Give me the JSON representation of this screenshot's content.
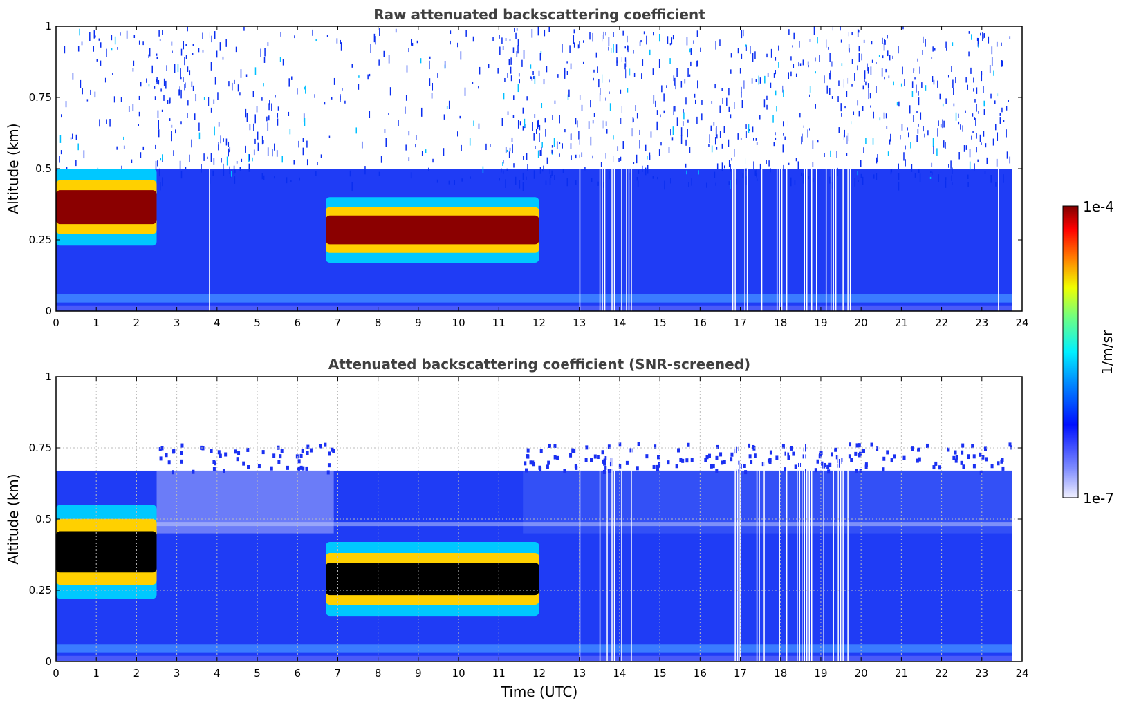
{
  "chart_data": [
    {
      "type": "heatmap",
      "title": "Raw attenuated backscattering coefficient",
      "xlabel": "",
      "ylabel": "Altitude (km)",
      "xlim": [
        0,
        24
      ],
      "ylim": [
        0,
        1
      ],
      "x_ticks": [
        "0",
        "1",
        "2",
        "3",
        "4",
        "5",
        "6",
        "7",
        "8",
        "9",
        "10",
        "11",
        "12",
        "13",
        "14",
        "15",
        "16",
        "17",
        "18",
        "19",
        "20",
        "21",
        "22",
        "23",
        "24"
      ],
      "y_ticks": [
        "0",
        "0.25",
        "0.5",
        "0.75",
        "1"
      ],
      "grid": false,
      "features": [
        {
          "name": "low layer",
          "time_utc": [
            0.0,
            2.5
          ],
          "base_km": 0.23,
          "top_km": 0.5,
          "peak_km": 0.35
        },
        {
          "name": "mid-day layer",
          "time_utc": [
            6.7,
            12.0
          ],
          "base_km": 0.17,
          "top_km": 0.4,
          "peak_km": 0.25
        }
      ]
    },
    {
      "type": "heatmap",
      "title": "Attenuated backscattering coefficient (SNR-screened)",
      "xlabel": "Time (UTC)",
      "ylabel": "Altitude (km)",
      "xlim": [
        0,
        24
      ],
      "ylim": [
        0,
        1
      ],
      "x_ticks": [
        "0",
        "1",
        "2",
        "3",
        "4",
        "5",
        "6",
        "7",
        "8",
        "9",
        "10",
        "11",
        "12",
        "13",
        "14",
        "15",
        "16",
        "17",
        "18",
        "19",
        "20",
        "21",
        "22",
        "23",
        "24"
      ],
      "y_ticks": [
        "0",
        "0.25",
        "0.5",
        "0.75",
        "1"
      ],
      "grid": true,
      "screened_top_km": [
        0.67,
        0.75
      ],
      "features": [
        {
          "name": "low layer",
          "time_utc": [
            0.0,
            2.5
          ],
          "base_km": 0.22,
          "top_km": 0.55,
          "peak_km": 0.35
        },
        {
          "name": "mid-day layer",
          "time_utc": [
            6.7,
            12.0
          ],
          "base_km": 0.16,
          "top_km": 0.42,
          "peak_km": 0.25
        }
      ]
    }
  ],
  "colorbar": {
    "label": "1/m/sr",
    "max_label": "1e-4",
    "min_label": "1e-7",
    "scale": "log",
    "range": [
      1e-07,
      0.0001
    ],
    "colormap": "jet"
  },
  "colors": {
    "background_blue": "#1f3cf5",
    "layer_core": "#8b0000",
    "saturated_core": "#000000",
    "title_text": "#404040"
  }
}
